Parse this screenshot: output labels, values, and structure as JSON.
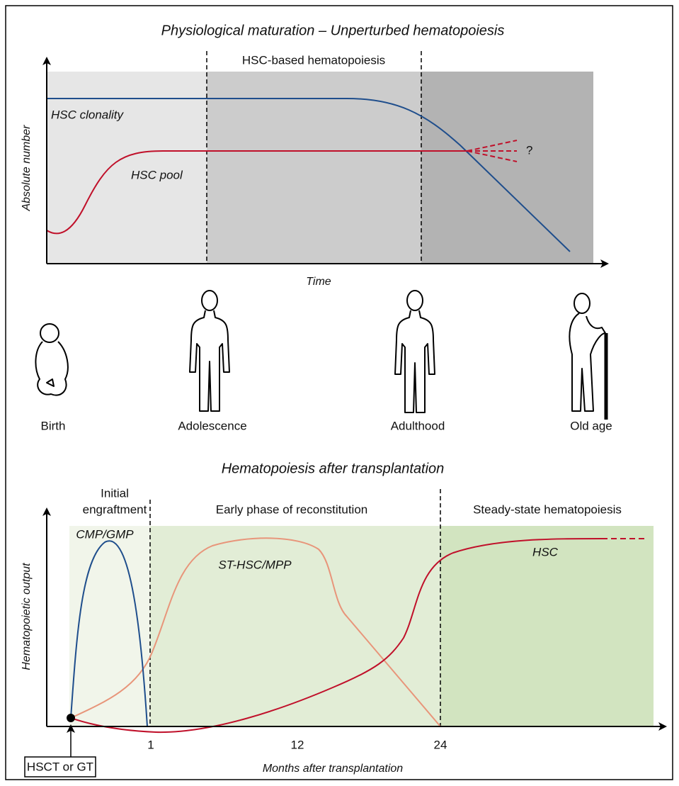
{
  "top_panel": {
    "title": "Physiological maturation – Unperturbed hematopoiesis",
    "phase_label": "HSC-based hematopoiesis",
    "curves": [
      "HSC clonality",
      "HSC pool"
    ],
    "uncertainty": "?",
    "y_axis": "Absolute number",
    "x_axis": "Time",
    "stages": [
      "Birth",
      "Adolescence",
      "Adulthood",
      "Old age"
    ]
  },
  "bottom_panel": {
    "title": "Hematopoiesis after transplantation",
    "phases": [
      [
        "Initial",
        "engraftment"
      ],
      [
        "Early phase of reconstitution"
      ],
      [
        "Steady-state hematopoiesis"
      ]
    ],
    "curves": [
      "CMP/GMP",
      "ST-HSC/MPP",
      "HSC"
    ],
    "y_axis": "Hematopoietic output",
    "x_ticks": [
      1,
      12,
      24
    ],
    "x_axis": "Months after transplantation",
    "start_label": "HSCT or GT"
  }
}
